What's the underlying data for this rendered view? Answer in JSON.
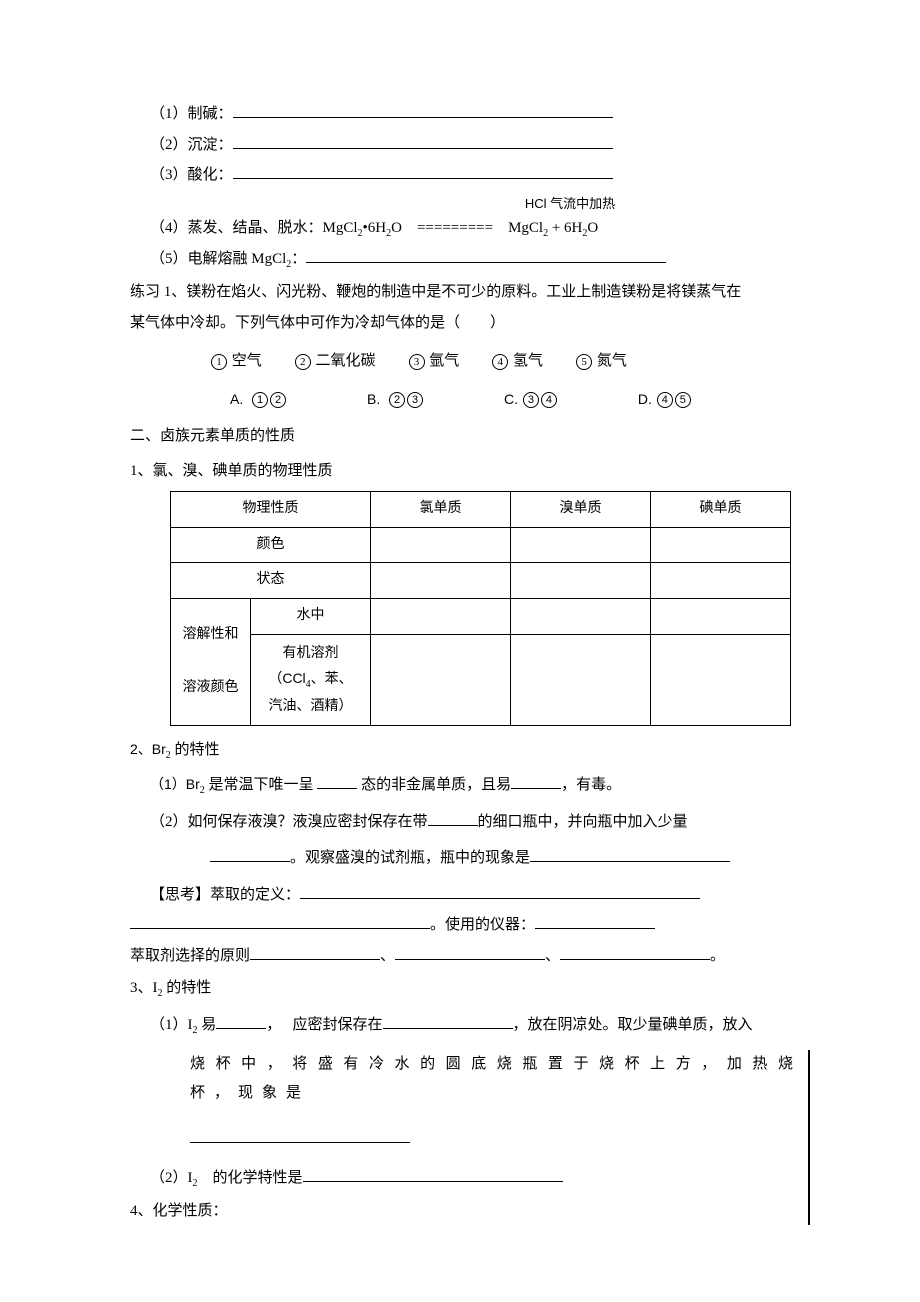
{
  "q1": {
    "label": "（1）制碱：",
    "blank_w": 380
  },
  "q2": {
    "label": "（2）沉淀：",
    "blank_w": 380
  },
  "q3": {
    "label": "（3）酸化：",
    "blank_w": 380
  },
  "hcl_label": "HCl 气流中加热",
  "q4": {
    "label": "（4）蒸发、结晶、脱水：MgCl",
    "sub1": "2",
    "mid1": "•6H",
    "sub2": "2",
    "mid2": "O ========= MgCl",
    "sub3": "2",
    "tail": " + 6H",
    "sub4": "2",
    "tail2": "O"
  },
  "q5": {
    "label": "（5）电解熔融 MgCl",
    "sub": "2",
    "sep": "：",
    "blank_w": 360
  },
  "ex1_l1": "练习 1、镁粉在焰火、闪光粉、鞭炮的制造中是不可少的原料。工业上制造镁粉是将镁蒸气在",
  "ex1_l2": "某气体中冷却。下列气体中可作为冷却气体的是（　　）",
  "opts_nums": [
    "1",
    "2",
    "3",
    "4",
    "5"
  ],
  "opts_labels": [
    "空气",
    "二氧化碳",
    "氩气",
    "氢气",
    "氮气"
  ],
  "ans": [
    {
      "letter": "A.",
      "c": [
        "1",
        "2"
      ]
    },
    {
      "letter": "B.",
      "c": [
        "2",
        "3"
      ]
    },
    {
      "letter": "C.",
      "c": [
        "3",
        "4"
      ]
    },
    {
      "letter": "D.",
      "c": [
        "4",
        "5"
      ]
    }
  ],
  "sec2": "二、卤族元素单质的性质",
  "sec2_1": "1、氯、溴、碘单质的物理性质",
  "table": {
    "h_phys": "物理性质",
    "h_cl": "氯单质",
    "h_br": "溴单质",
    "h_i": "碘单质",
    "r_color": "颜色",
    "r_state": "状态",
    "r_solub": "溶解性和",
    "r_color2": "溶液颜色",
    "r_water": "水中",
    "r_org1": "有机溶剂",
    "r_org2_pre": "（CCl",
    "r_org2_sub": "4",
    "r_org2_post": "、苯、",
    "r_org3": "汽油、酒精）"
  },
  "sec2_2": {
    "pre": "2、Br",
    "sub": "2",
    "post": " 的特性"
  },
  "br1": {
    "pre": "（1）Br",
    "sub": "2",
    "mid1": " 是常温下唯一呈 ",
    "b1": 40,
    "mid2": " 态的非金属单质，且易",
    "b2": 50,
    "mid3": "，有毒。"
  },
  "br2": {
    "pre": "（2）如何保存液溴？液溴应密封保存在带",
    "b1": 50,
    "mid1": "的细口瓶中，并向瓶中加入少量"
  },
  "br2b": {
    "b1": 80,
    "mid1": "。观察盛溴的试剂瓶，瓶中的现象是",
    "b2": 200
  },
  "think_label": "【思考】萃取的定义：",
  "think_b1": 400,
  "think_l2_b": 300,
  "think_l2_mid": "。使用的仪器：",
  "think_l2_b2": 120,
  "extract_pre": "萃取剂选择的原则",
  "extract_b1": 130,
  "extract_sep": "、",
  "extract_b2": 150,
  "extract_b3": 150,
  "extract_post": "。",
  "sec3": {
    "pre": "3、I",
    "sub": "2",
    "post": " 的特性"
  },
  "i1": {
    "pre": "（1）I",
    "sub": "2",
    "mid1": " 易",
    "b1": 50,
    "mid2": "，　 应密封保存在",
    "b2": 130,
    "mid3": "，放在阴凉处。取少量碘单质，放入"
  },
  "i1b": "烧杯中，将盛有冷水的圆底烧瓶置于烧杯上方，加热烧杯，现象是",
  "i1b_blank": 220,
  "i2": {
    "pre": "（2）I",
    "sub": "2",
    "mid": " 的化学特性是",
    "b": 260
  },
  "sec4": "4、化学性质："
}
